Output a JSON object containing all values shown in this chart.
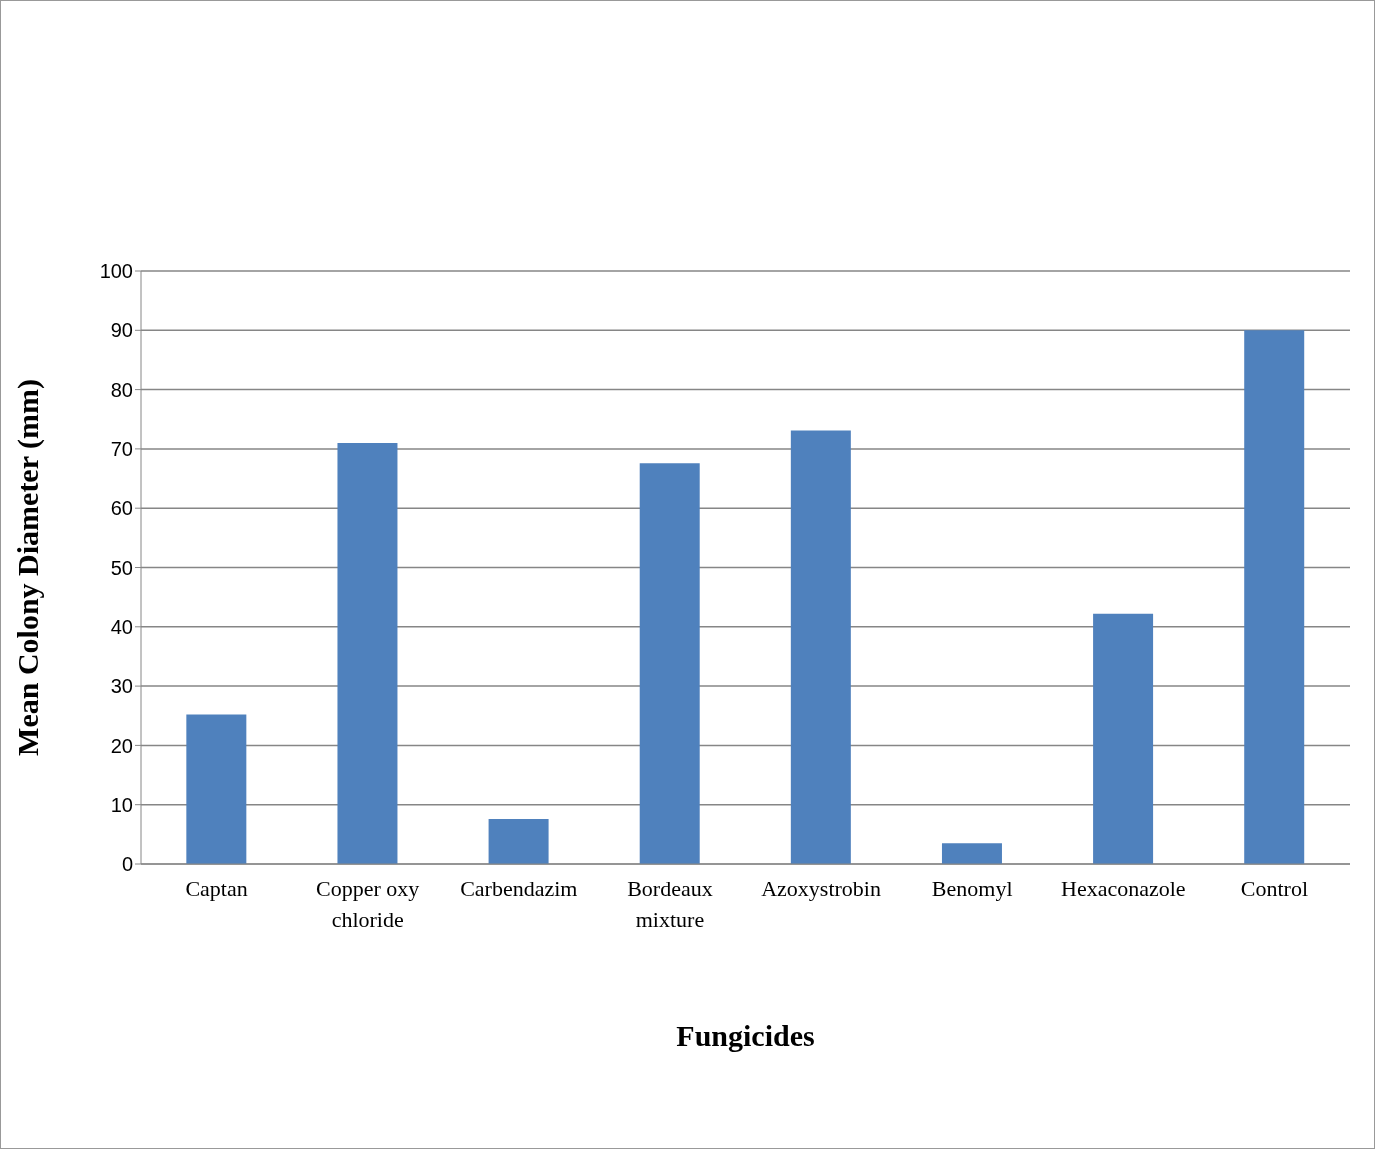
{
  "chart_data": {
    "type": "bar",
    "xlabel": "Fungicides",
    "ylabel": "Mean Colony Diameter (mm)",
    "categories": [
      "Captan",
      "Copper oxy chloride",
      "Carbendazim",
      "Bordeaux mixture",
      "Azoxystrobin",
      "Benomyl",
      "Hexaconazole",
      "Control"
    ],
    "values": [
      25.2,
      71,
      7.6,
      67.6,
      73.1,
      3.5,
      42.2,
      90
    ],
    "color": "#4f81bd",
    "ylim": [
      0,
      100
    ],
    "yticks": [
      0,
      10,
      20,
      30,
      40,
      50,
      60,
      70,
      80,
      90,
      100
    ],
    "grid": "y",
    "legend": false
  }
}
